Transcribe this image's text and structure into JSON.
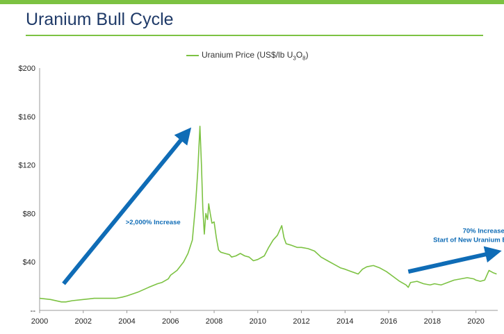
{
  "header": {
    "title": "Uranium Bull Cycle",
    "accent_color": "#7cc242",
    "title_color": "#1f3a68"
  },
  "chart_data": {
    "type": "line",
    "series": [
      {
        "name": "Uranium Price (US$/lb U3O8)",
        "legend_text": "Uranium Price (US$/lb U",
        "legend_sub": "3",
        "legend_o": "O",
        "legend_sub2": "8",
        "legend_close": ")",
        "color": "#7cc242",
        "x": [
          2000.0,
          2000.5,
          2001.0,
          2001.2,
          2001.5,
          2002.0,
          2002.5,
          2003.0,
          2003.5,
          2003.8,
          2004.0,
          2004.5,
          2005.0,
          2005.4,
          2005.6,
          2005.9,
          2006.0,
          2006.3,
          2006.6,
          2006.8,
          2007.0,
          2007.15,
          2007.25,
          2007.35,
          2007.42,
          2007.48,
          2007.55,
          2007.62,
          2007.7,
          2007.75,
          2007.82,
          2007.9,
          2008.0,
          2008.1,
          2008.2,
          2008.3,
          2008.5,
          2008.7,
          2008.8,
          2009.0,
          2009.2,
          2009.4,
          2009.6,
          2009.8,
          2010.0,
          2010.3,
          2010.5,
          2010.7,
          2010.9,
          2011.0,
          2011.1,
          2011.2,
          2011.3,
          2011.5,
          2011.8,
          2012.0,
          2012.3,
          2012.6,
          2012.9,
          2013.2,
          2013.5,
          2013.8,
          2014.0,
          2014.3,
          2014.6,
          2014.8,
          2015.0,
          2015.3,
          2015.6,
          2015.9,
          2016.2,
          2016.5,
          2016.8,
          2016.9,
          2017.0,
          2017.3,
          2017.6,
          2017.9,
          2018.1,
          2018.4,
          2018.7,
          2019.0,
          2019.3,
          2019.6,
          2019.9,
          2020.0,
          2020.2,
          2020.4,
          2020.6,
          2020.8,
          2020.95
        ],
        "values": [
          10,
          9,
          7,
          7,
          8,
          9,
          10,
          10,
          10,
          11,
          12,
          15,
          19,
          22,
          23,
          26,
          29,
          33,
          40,
          47,
          58,
          88,
          115,
          152,
          120,
          85,
          63,
          80,
          75,
          88,
          80,
          72,
          73,
          60,
          50,
          48,
          47,
          46,
          44,
          45,
          47,
          45,
          44,
          41,
          42,
          45,
          52,
          58,
          62,
          66,
          70,
          60,
          55,
          54,
          52,
          52,
          51,
          49,
          44,
          41,
          38,
          35,
          34,
          32,
          30,
          34,
          36,
          37,
          35,
          32,
          28,
          24,
          21,
          19,
          23,
          24,
          22,
          21,
          22,
          21,
          23,
          25,
          26,
          27,
          26,
          25,
          24,
          25,
          33,
          31,
          30
        ]
      }
    ],
    "x_ticks": [
      "2000",
      "2002",
      "2004",
      "2006",
      "2008",
      "2010",
      "2012",
      "2014",
      "2016",
      "2018",
      "2020"
    ],
    "x_tick_values": [
      2000,
      2002,
      2004,
      2006,
      2008,
      2010,
      2012,
      2014,
      2016,
      2018,
      2020
    ],
    "y_ticks": [
      "--",
      "$40",
      "$80",
      "$120",
      "$160",
      "$200"
    ],
    "y_tick_values": [
      0,
      40,
      80,
      120,
      160,
      200
    ],
    "xlim": [
      2000,
      2021
    ],
    "ylim": [
      0,
      200
    ],
    "grid": false,
    "legend_placement": "top-center",
    "annotations": {
      "left": {
        "text": ">2,000% Increase",
        "arrow_from": [
          2001.1,
          22
        ],
        "arrow_to": [
          2006.9,
          148
        ],
        "text_at": [
          2005.2,
          71
        ]
      },
      "right": {
        "line1": "70% Increase",
        "line2": "Start of New Uranium Bull Cycle",
        "arrow_from": [
          2016.9,
          32
        ],
        "arrow_to": [
          2021.0,
          50
        ],
        "text_at": [
          2018.6,
          64
        ]
      },
      "color": "#0f6cb6"
    }
  }
}
